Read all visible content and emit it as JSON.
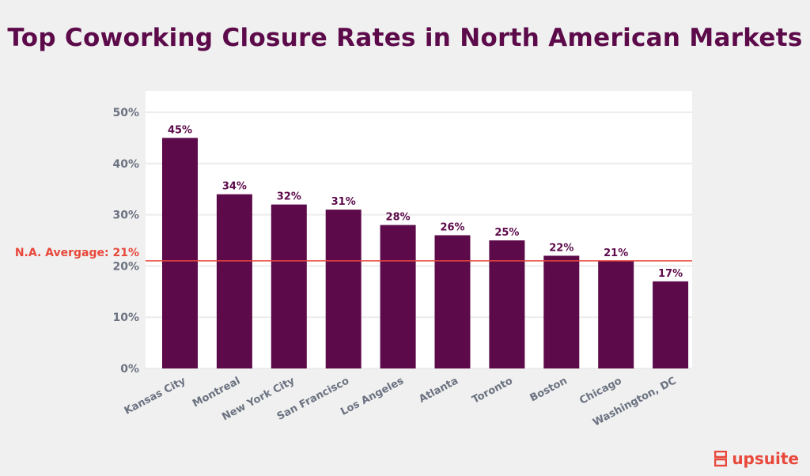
{
  "chart_data": {
    "type": "bar",
    "title": "Top Coworking Closure Rates in North American Markets",
    "categories": [
      "Kansas City",
      "Montreal",
      "New York City",
      "San Francisco",
      "Los Angeles",
      "Atlanta",
      "Toronto",
      "Boston",
      "Chicago",
      "Washington, DC"
    ],
    "values": [
      45,
      34,
      32,
      31,
      28,
      26,
      25,
      22,
      21,
      17
    ],
    "value_labels": [
      "45%",
      "34%",
      "32%",
      "31%",
      "28%",
      "26%",
      "25%",
      "22%",
      "21%",
      "17%"
    ],
    "ylim": [
      0,
      50
    ],
    "yticks": [
      0,
      10,
      20,
      30,
      40,
      50
    ],
    "ytick_labels": [
      "0%",
      "10%",
      "20%",
      "30%",
      "40%",
      "50%"
    ],
    "reference_line": {
      "value": 21,
      "label": "N.A. Avergage: 21%",
      "color": "#e8473a"
    },
    "bar_color": "#5c0a4a",
    "grid": true
  },
  "brand": {
    "name": "upsuite"
  }
}
